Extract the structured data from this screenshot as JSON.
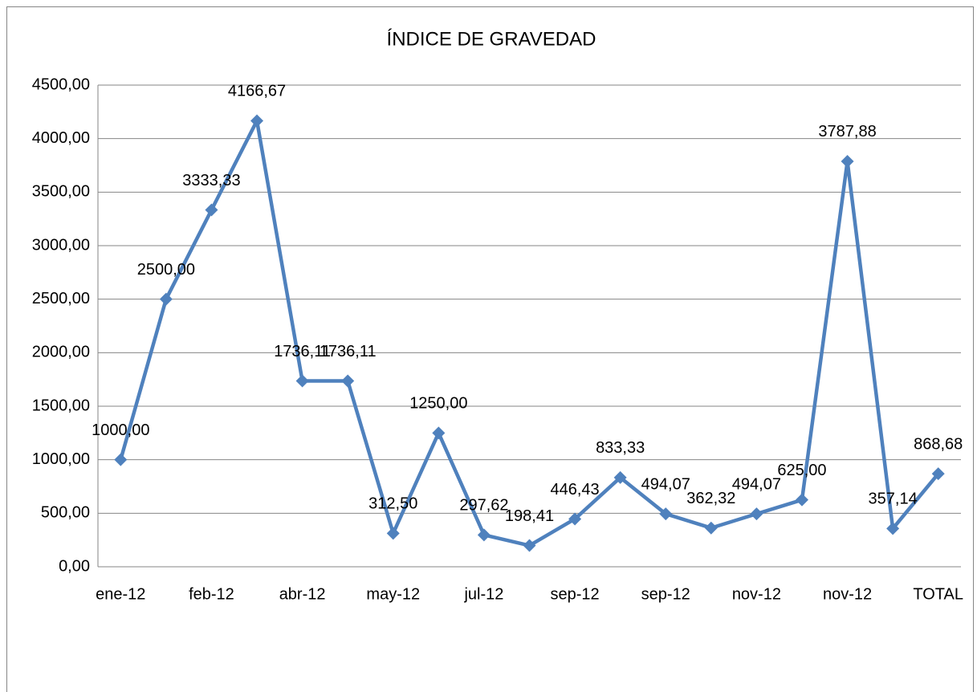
{
  "chart_data": {
    "type": "line",
    "title": "ÍNDICE DE GRAVEDAD",
    "categories": [
      "ene-12",
      null,
      "feb-12",
      null,
      "abr-12",
      null,
      "may-12",
      null,
      "jul-12",
      null,
      "sep-12",
      null,
      "sep-12",
      null,
      "nov-12",
      null,
      "nov-12",
      null,
      "TOTAL"
    ],
    "series": [
      {
        "color": "#4f81bd",
        "values": [
          1000.0,
          2500.0,
          3333.33,
          4166.67,
          1736.11,
          1736.11,
          312.5,
          1250.0,
          297.62,
          198.41,
          446.43,
          833.33,
          494.07,
          362.32,
          494.07,
          625.0,
          3787.88,
          357.14,
          868.68
        ],
        "value_labels": [
          "1000,00",
          "2500,00",
          "3333,33",
          "4166,67",
          "1736,11",
          "1736,11",
          "312,50",
          "1250,00",
          "297,62",
          "198,41",
          "446,43",
          "833,33",
          "494,07",
          "362,32",
          "494,07",
          "625,00",
          "3787,88",
          "357,14",
          "868,68"
        ]
      }
    ],
    "ylim": [
      0,
      4500
    ],
    "yticks": [
      {
        "value": 0,
        "label": "0,00"
      },
      {
        "value": 500,
        "label": "500,00"
      },
      {
        "value": 1000,
        "label": "1000,00"
      },
      {
        "value": 1500,
        "label": "1500,00"
      },
      {
        "value": 2000,
        "label": "2000,00"
      },
      {
        "value": 2500,
        "label": "2500,00"
      },
      {
        "value": 3000,
        "label": "3000,00"
      },
      {
        "value": 3500,
        "label": "3500,00"
      },
      {
        "value": 4000,
        "label": "4000,00"
      },
      {
        "value": 4500,
        "label": "4500,00"
      }
    ],
    "grid": true
  }
}
